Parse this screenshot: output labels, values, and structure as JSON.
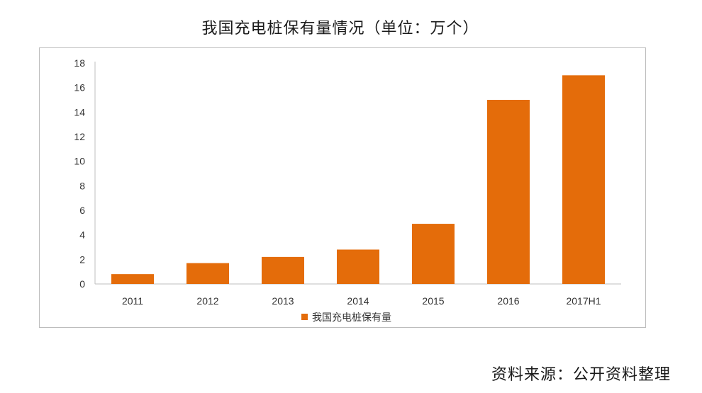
{
  "header": {
    "title": "我国充电桩保有量情况（单位：万个）"
  },
  "footer": {
    "source": "资料来源：公开资料整理"
  },
  "colors": {
    "bar": "#E46C0A",
    "axis": "#bfbfbf",
    "text": "#333333"
  },
  "chart_data": {
    "type": "bar",
    "title": "我国充电桩保有量情况（单位：万个）",
    "categories": [
      "2011",
      "2012",
      "2013",
      "2014",
      "2015",
      "2016",
      "2017H1"
    ],
    "series": [
      {
        "name": "我国充电桩保有量",
        "values": [
          0.8,
          1.7,
          2.2,
          2.8,
          4.9,
          15.0,
          17.0
        ]
      }
    ],
    "ylim": [
      0,
      18
    ],
    "yticks": [
      "0",
      "2",
      "4",
      "6",
      "8",
      "10",
      "12",
      "14",
      "16",
      "18"
    ],
    "grid": false,
    "legend_position": "bottom"
  }
}
